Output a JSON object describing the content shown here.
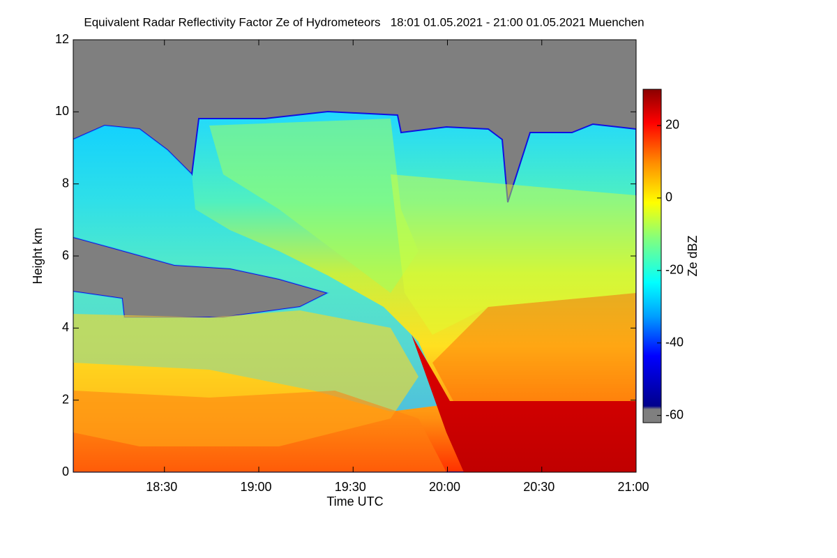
{
  "chart_data": {
    "type": "heatmap",
    "title": "Equivalent Radar Reflectivity Factor Ze of Hydrometeors   18:01 01.05.2021 - 21:00 01.05.2021 Muenchen",
    "x_label": "Time UTC",
    "y_label": "Height km",
    "colorbar_label": "Ze dBZ",
    "xlim": [
      1081,
      1260
    ],
    "xticks": [
      {
        "value": 1110,
        "label": "18:30"
      },
      {
        "value": 1140,
        "label": "19:00"
      },
      {
        "value": 1170,
        "label": "19:30"
      },
      {
        "value": 1200,
        "label": "20:00"
      },
      {
        "value": 1230,
        "label": "20:30"
      },
      {
        "value": 1260,
        "label": "21:00"
      }
    ],
    "ylim": [
      0,
      12
    ],
    "yticks": [
      0,
      2,
      4,
      6,
      8,
      10,
      12
    ],
    "zlim": [
      -62,
      30
    ],
    "zticks": [
      -60,
      -40,
      -20,
      0,
      20
    ]
  }
}
